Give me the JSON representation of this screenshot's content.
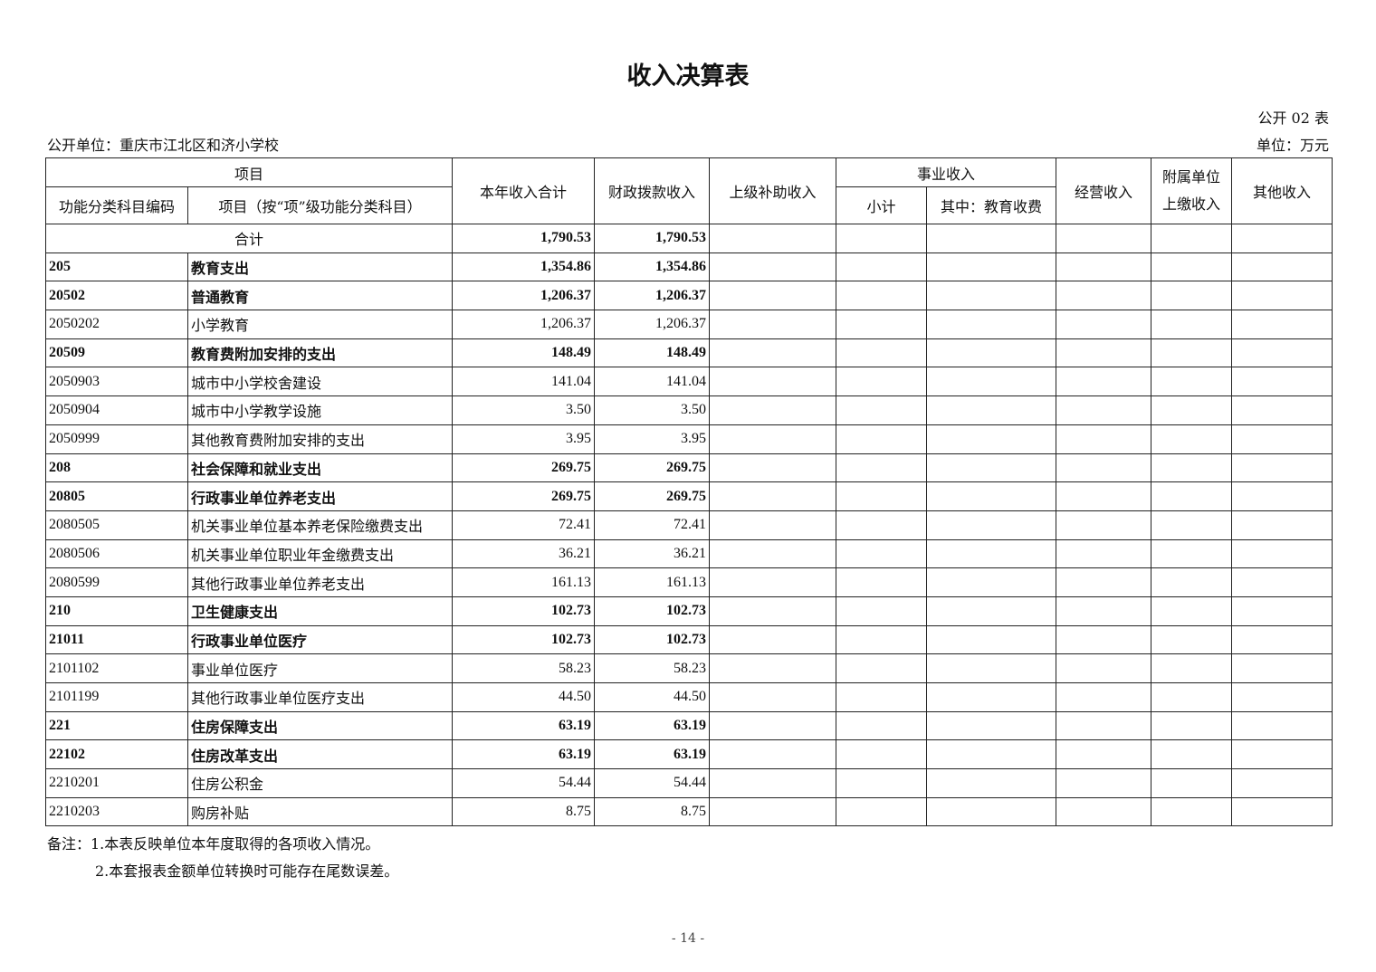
{
  "title": "收入决算表",
  "table_no": "公开 02 表",
  "org": "公开单位：重庆市江北区和济小学校",
  "unit": "单位：万元",
  "headers": {
    "item": "项目",
    "code": "功能分类科目编码",
    "name": "项目（按“项”级功能分类科目）",
    "total": "本年收入合计",
    "fiscal": "财政拨款收入",
    "superior": "上级补助收入",
    "business": "事业收入",
    "subtotal": "小计",
    "edu_fee": "其中：教育收费",
    "operating": "经营收入",
    "affiliated": "附属单位上缴收入",
    "affiliated_l1": "附属单位",
    "affiliated_l2": "上缴收入",
    "other": "其他收入"
  },
  "total_row": {
    "label": "合计",
    "total": "1,790.53",
    "fiscal": "1,790.53"
  },
  "rows": [
    {
      "code": "205",
      "name": "教育支出",
      "total": "1,354.86",
      "fiscal": "1,354.86",
      "bold": true
    },
    {
      "code": "20502",
      "name": "普通教育",
      "total": "1,206.37",
      "fiscal": "1,206.37",
      "bold": true
    },
    {
      "code": "2050202",
      "name": "小学教育",
      "total": "1,206.37",
      "fiscal": "1,206.37",
      "bold": false
    },
    {
      "code": "20509",
      "name": "教育费附加安排的支出",
      "total": "148.49",
      "fiscal": "148.49",
      "bold": true
    },
    {
      "code": "2050903",
      "name": "城市中小学校舍建设",
      "total": "141.04",
      "fiscal": "141.04",
      "bold": false
    },
    {
      "code": "2050904",
      "name": "城市中小学教学设施",
      "total": "3.50",
      "fiscal": "3.50",
      "bold": false
    },
    {
      "code": "2050999",
      "name": "其他教育费附加安排的支出",
      "total": "3.95",
      "fiscal": "3.95",
      "bold": false
    },
    {
      "code": "208",
      "name": "社会保障和就业支出",
      "total": "269.75",
      "fiscal": "269.75",
      "bold": true
    },
    {
      "code": "20805",
      "name": "行政事业单位养老支出",
      "total": "269.75",
      "fiscal": "269.75",
      "bold": true
    },
    {
      "code": "2080505",
      "name": "机关事业单位基本养老保险缴费支出",
      "total": "72.41",
      "fiscal": "72.41",
      "bold": false
    },
    {
      "code": "2080506",
      "name": "机关事业单位职业年金缴费支出",
      "total": "36.21",
      "fiscal": "36.21",
      "bold": false
    },
    {
      "code": "2080599",
      "name": "其他行政事业单位养老支出",
      "total": "161.13",
      "fiscal": "161.13",
      "bold": false
    },
    {
      "code": "210",
      "name": "卫生健康支出",
      "total": "102.73",
      "fiscal": "102.73",
      "bold": true
    },
    {
      "code": "21011",
      "name": "行政事业单位医疗",
      "total": "102.73",
      "fiscal": "102.73",
      "bold": true
    },
    {
      "code": "2101102",
      "name": "事业单位医疗",
      "total": "58.23",
      "fiscal": "58.23",
      "bold": false
    },
    {
      "code": "2101199",
      "name": "其他行政事业单位医疗支出",
      "total": "44.50",
      "fiscal": "44.50",
      "bold": false
    },
    {
      "code": "221",
      "name": "住房保障支出",
      "total": "63.19",
      "fiscal": "63.19",
      "bold": true
    },
    {
      "code": "22102",
      "name": "住房改革支出",
      "total": "63.19",
      "fiscal": "63.19",
      "bold": true
    },
    {
      "code": "2210201",
      "name": "住房公积金",
      "total": "54.44",
      "fiscal": "54.44",
      "bold": false
    },
    {
      "code": "2210203",
      "name": "购房补贴",
      "total": "8.75",
      "fiscal": "8.75",
      "bold": false
    }
  ],
  "notes": [
    "备注：1.本表反映单位本年度取得的各项收入情况。",
    "2.本套报表金额单位转换时可能存在尾数误差。"
  ],
  "page_number": "- 14 -"
}
